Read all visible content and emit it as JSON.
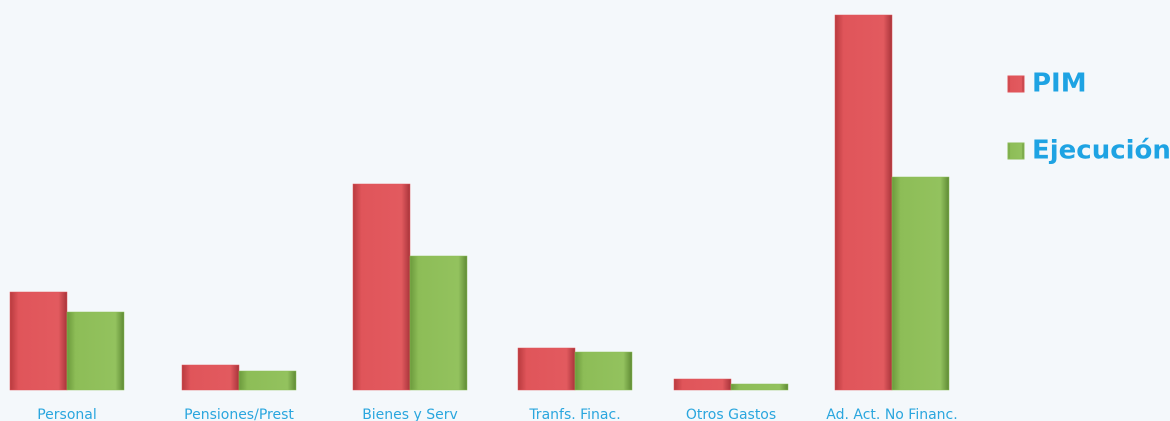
{
  "chart_data": {
    "type": "bar",
    "categories": [
      "Personal",
      "Pensiones/Prest",
      "Bienes y Serv",
      "Tranfs. Finac.",
      "Otros Gastos",
      "Ad. Act. No Financ."
    ],
    "series": [
      {
        "name": "PIM",
        "color": "#e0555a",
        "values": [
          98,
          25,
          206,
          42,
          11,
          375
        ]
      },
      {
        "name": "Ejecución",
        "color": "#8dbd57",
        "values": [
          78,
          19,
          134,
          38,
          6,
          213
        ]
      }
    ],
    "ylim": [
      0,
      375
    ],
    "legend": "right"
  }
}
